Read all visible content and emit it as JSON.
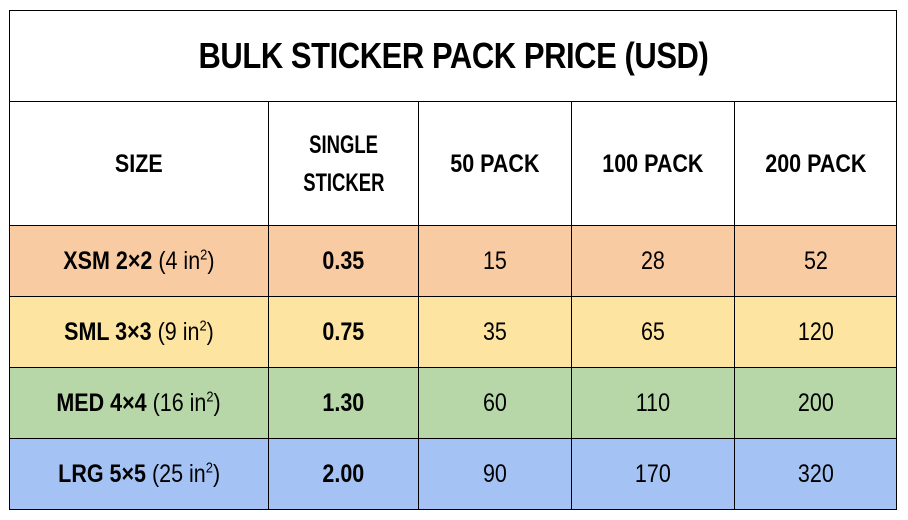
{
  "title": "BULK STICKER PACK PRICE (USD)",
  "headers": {
    "size": "SIZE",
    "single_line1": "SINGLE",
    "single_line2": "STICKER",
    "pack50": "50 PACK",
    "pack100": "100 PACK",
    "pack200": "200 PACK"
  },
  "rows": [
    {
      "code": "XSM 2×2",
      "area_open": "(4 in",
      "sup": "2",
      "area_close": ")",
      "single": "0.35",
      "p50": "15",
      "p100": "28",
      "p200": "52",
      "color": "#f8cba3"
    },
    {
      "code": "SML 3×3",
      "area_open": "(9 in",
      "sup": "2",
      "area_close": ")",
      "single": "0.75",
      "p50": "35",
      "p100": "65",
      "p200": "120",
      "color": "#fde5a1"
    },
    {
      "code": "MED 4×4",
      "area_open": "(16 in",
      "sup": "2",
      "area_close": ")",
      "single": "1.30",
      "p50": "60",
      "p100": "110",
      "p200": "200",
      "color": "#b7d7a8"
    },
    {
      "code": "LRG 5×5",
      "area_open": "(25 in",
      "sup": "2",
      "area_close": ")",
      "single": "2.00",
      "p50": "90",
      "p100": "170",
      "p200": "320",
      "color": "#a4c2f4"
    }
  ]
}
